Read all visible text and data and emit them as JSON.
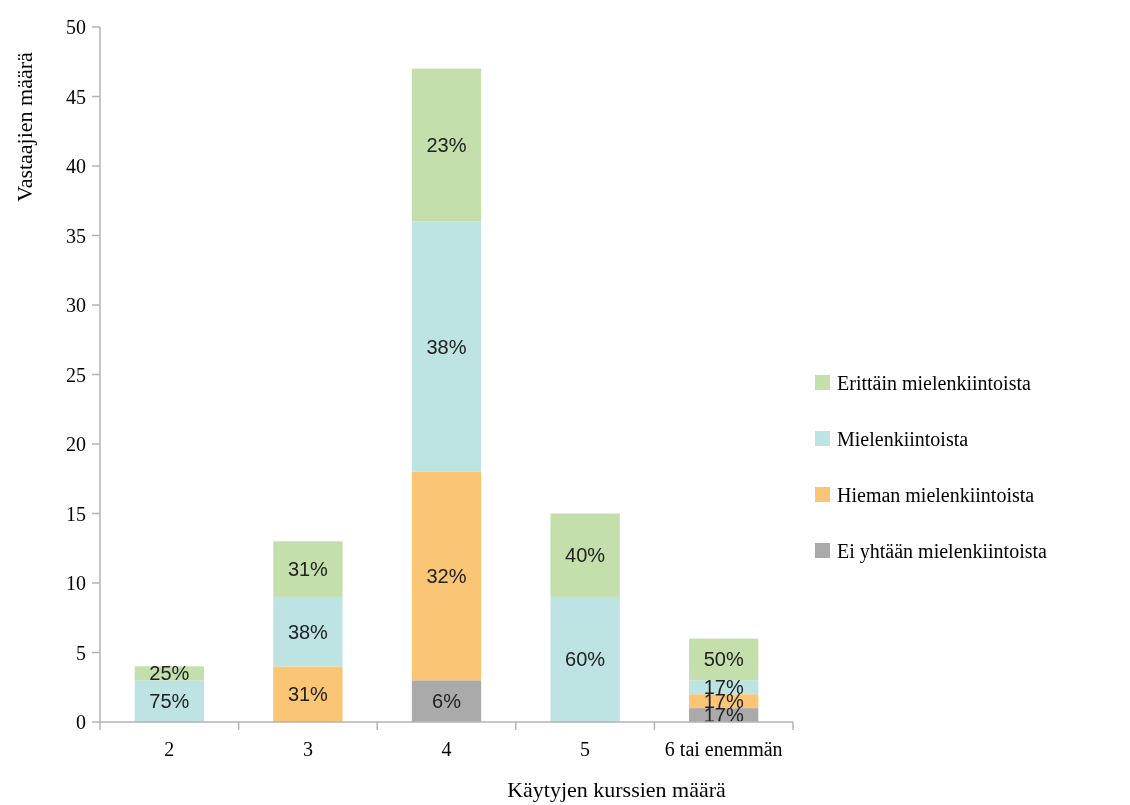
{
  "chart_data": {
    "type": "bar",
    "stacked": true,
    "xlabel": "Käytyjen kurssien määrä",
    "ylabel": "Vastaajien määrä",
    "categories": [
      "2",
      "3",
      "4",
      "5",
      "6 tai enemmän"
    ],
    "series": [
      {
        "name": "Ei yhtään mielenkiintoista",
        "color": "#aaaaaa",
        "values": [
          0,
          0,
          3,
          0,
          1
        ]
      },
      {
        "name": "Hieman mielenkiintoista",
        "color": "#fac575",
        "values": [
          0,
          4,
          15,
          0,
          1
        ]
      },
      {
        "name": "Mielenkiintoista",
        "color": "#bde3e3",
        "values": [
          3,
          5,
          18,
          9,
          1
        ]
      },
      {
        "name": "Erittäin mielenkiintoista",
        "color": "#c4dfac",
        "values": [
          1,
          4,
          11,
          6,
          3
        ]
      }
    ],
    "annotations": [
      "75%",
      "25%",
      "31%",
      "38%",
      "31%",
      "6%",
      "32%",
      "38%",
      "23%",
      "60%",
      "40%",
      "17%",
      "17%",
      "17%",
      "50%"
    ],
    "ylim": [
      0,
      50
    ],
    "yticks": [
      0,
      5,
      10,
      15,
      20,
      25,
      30,
      35,
      40,
      45,
      50
    ],
    "legend": "right"
  }
}
